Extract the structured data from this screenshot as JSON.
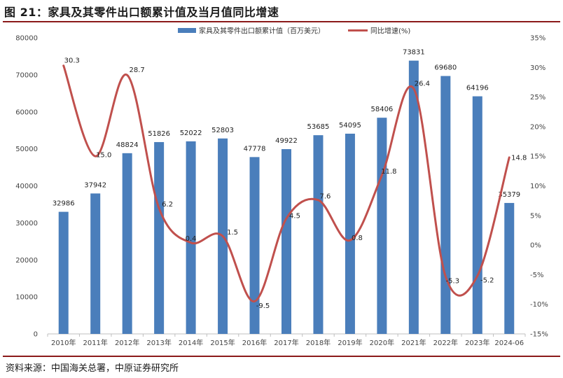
{
  "figure": {
    "title": "图 21：家具及其零件出口额累计值及当月值同比增速",
    "source": "资料来源：中国海关总署，中原证券研究所"
  },
  "chart_data": {
    "type": "bar",
    "categories": [
      "2010年",
      "2011年",
      "2012年",
      "2013年",
      "2014年",
      "2015年",
      "2016年",
      "2017年",
      "2018年",
      "2019年",
      "2020年",
      "2021年",
      "2022年",
      "2023年",
      "2024-06"
    ],
    "series": [
      {
        "name": "家具及其零件出口额累计值（百万美元）",
        "kind": "bar",
        "axis": "left",
        "color": "#4a7ebb",
        "values": [
          32986,
          37942,
          48824,
          51826,
          52022,
          52803,
          47778,
          49922,
          53685,
          54095,
          58406,
          73831,
          69680,
          64196,
          35379
        ],
        "labels": [
          "32986",
          "37942",
          "48824",
          "51826",
          "52022",
          "52803",
          "47778",
          "49922",
          "53685",
          "54095",
          "58406",
          "73831",
          "69680",
          "64196",
          "35379"
        ]
      },
      {
        "name": "同比增速(%)",
        "kind": "line",
        "axis": "right",
        "color": "#c0504d",
        "values": [
          30.3,
          15.0,
          28.7,
          6.2,
          0.4,
          1.5,
          -9.5,
          4.5,
          7.6,
          0.8,
          11.8,
          26.4,
          -5.3,
          -5.2,
          14.8
        ],
        "labels": [
          "30.3",
          "15.0",
          "28.7",
          "6.2",
          "0.4",
          "1.5",
          "-9.5",
          "4.5",
          "7.6",
          "0.8",
          "11.8",
          "26.4",
          "-5.3",
          "-5.2",
          "14.8"
        ]
      }
    ],
    "y_left": {
      "min": 0,
      "max": 80000,
      "step": 10000,
      "ticks": [
        "0",
        "10000",
        "20000",
        "30000",
        "40000",
        "50000",
        "60000",
        "70000",
        "80000"
      ]
    },
    "y_right": {
      "min": -15,
      "max": 35,
      "step": 5,
      "ticks": [
        "-15%",
        "-10%",
        "-5%",
        "0%",
        "5%",
        "10%",
        "15%",
        "20%",
        "25%",
        "30%",
        "35%"
      ]
    },
    "grid": false,
    "legend": "top-center"
  }
}
